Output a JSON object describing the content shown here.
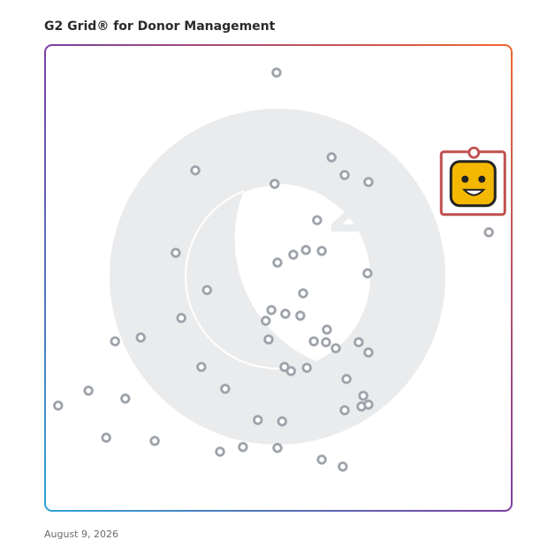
{
  "chart_data": {
    "type": "scatter",
    "title": "G2 Grid® for Donor Management",
    "xlim": [
      0,
      100
    ],
    "ylim": [
      0,
      100
    ],
    "series": [
      {
        "color": "#9ea3ab",
        "x": [
          49.6,
          61.4,
          64.2,
          69.3,
          32.2,
          49.2,
          58.3,
          28.0,
          53.2,
          55.9,
          59.3,
          49.8,
          69.1,
          95.1,
          34.7,
          55.3,
          48.5,
          51.5,
          54.7,
          47.3,
          29.2,
          15.0,
          20.5,
          47.9,
          57.6,
          60.4,
          60.2,
          62.3,
          67.2,
          69.3,
          33.5,
          51.3,
          52.7,
          56.1,
          64.6,
          38.6,
          9.3,
          17.2,
          2.8,
          68.2,
          67.8,
          69.3,
          64.2,
          45.6,
          50.8,
          13.1,
          23.5,
          37.5,
          42.4,
          49.8,
          59.3,
          63.8
        ],
        "y": [
          94.1,
          75.9,
          72.1,
          70.6,
          73.1,
          70.2,
          62.4,
          55.4,
          55.0,
          56.0,
          55.8,
          53.3,
          51.0,
          59.8,
          47.4,
          46.7,
          43.1,
          42.3,
          41.9,
          40.8,
          41.4,
          36.4,
          37.2,
          36.8,
          36.4,
          38.9,
          36.2,
          34.9,
          36.2,
          34.0,
          30.9,
          30.9,
          30.0,
          30.7,
          28.3,
          26.2,
          25.8,
          24.1,
          22.6,
          24.7,
          22.4,
          22.8,
          21.6,
          19.5,
          19.2,
          15.7,
          15.0,
          12.7,
          13.7,
          13.5,
          11.0,
          9.5
        ]
      },
      {
        "color": "#c0504d",
        "x": [
          91.9
        ],
        "y": [
          76.9
        ]
      }
    ]
  },
  "date": "August 9, 2026"
}
